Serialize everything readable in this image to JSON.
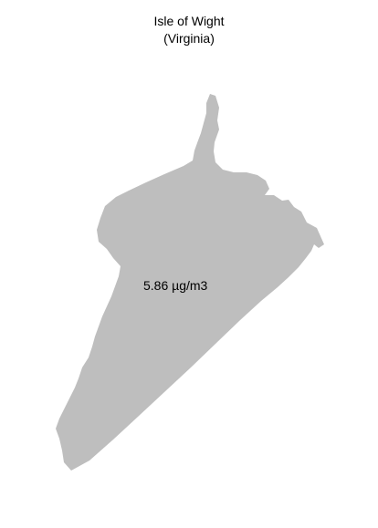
{
  "map": {
    "title": "Isle of Wight",
    "subtitle": "(Virginia)",
    "region_value_label": "5.86 µg/m3",
    "region_fill_color": "#bebebe",
    "background_color": "#ffffff"
  }
}
